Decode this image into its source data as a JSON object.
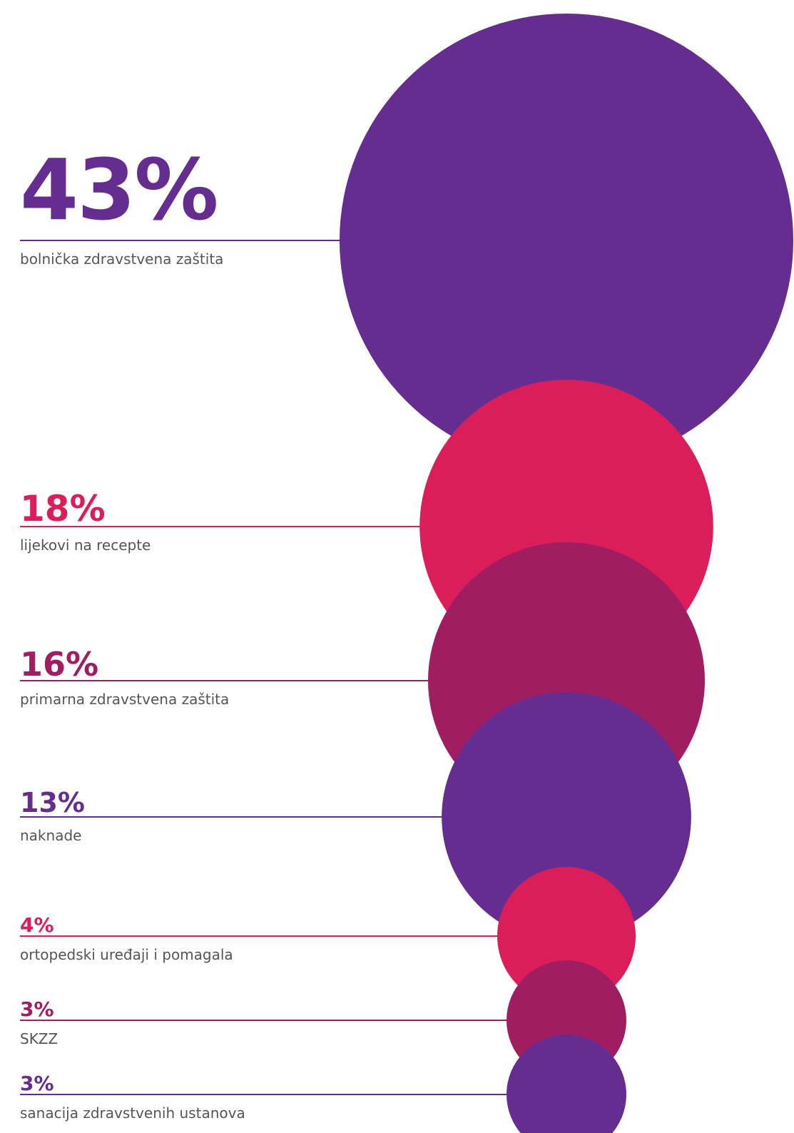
{
  "chart_data": {
    "type": "bubble",
    "unit": "%",
    "series": [
      {
        "items": [
          {
            "value": 43,
            "value_label": "43%",
            "label": "bolnička zdravstvena zaštita",
            "color": "#652d8f"
          },
          {
            "value": 18,
            "value_label": "18%",
            "label": "lijekovi na recepte",
            "color": "#db1d5a"
          },
          {
            "value": 16,
            "value_label": "16%",
            "label": "primarna zdravstvena zaštita",
            "color": "#a01d61"
          },
          {
            "value": 13,
            "value_label": "13%",
            "label": "naknade",
            "color": "#652d8f"
          },
          {
            "value": 4,
            "value_label": "4%",
            "label": "ortopedski uređaji i pomagala",
            "color": "#db1d5a"
          },
          {
            "value": 3,
            "value_label": "3%",
            "label": "SKZZ",
            "color": "#a01d61"
          },
          {
            "value": 3,
            "value_label": "3%",
            "label": "sanacija zdravstvenih ustanova",
            "color": "#652d8f"
          }
        ]
      }
    ]
  }
}
